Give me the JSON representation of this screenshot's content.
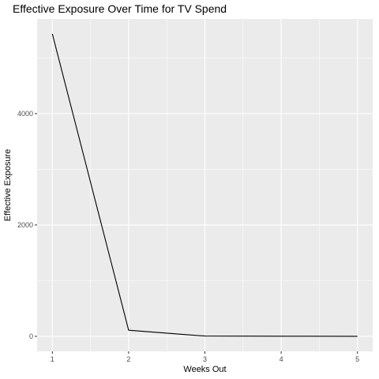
{
  "chart_data": {
    "type": "line",
    "title": "Effective Exposure Over Time for TV Spend",
    "xlabel": "Weeks Out",
    "ylabel": "Effective Exposure",
    "x": [
      1,
      2,
      3,
      4,
      5
    ],
    "series": [
      {
        "values": [
          5430,
          110,
          5,
          2,
          1
        ]
      }
    ],
    "x_ticks": [
      1,
      2,
      3,
      4,
      5
    ],
    "y_ticks": [
      0,
      2000,
      4000
    ],
    "xlim": [
      0.8,
      5.2
    ],
    "ylim": [
      -270,
      5700
    ],
    "grid": true,
    "legend": "none",
    "colors": {
      "panel": "#ebebeb",
      "grid_major": "#ffffff",
      "line": "#000000",
      "tick_label": "#4d4d4d",
      "tick_mark": "#333333"
    }
  }
}
